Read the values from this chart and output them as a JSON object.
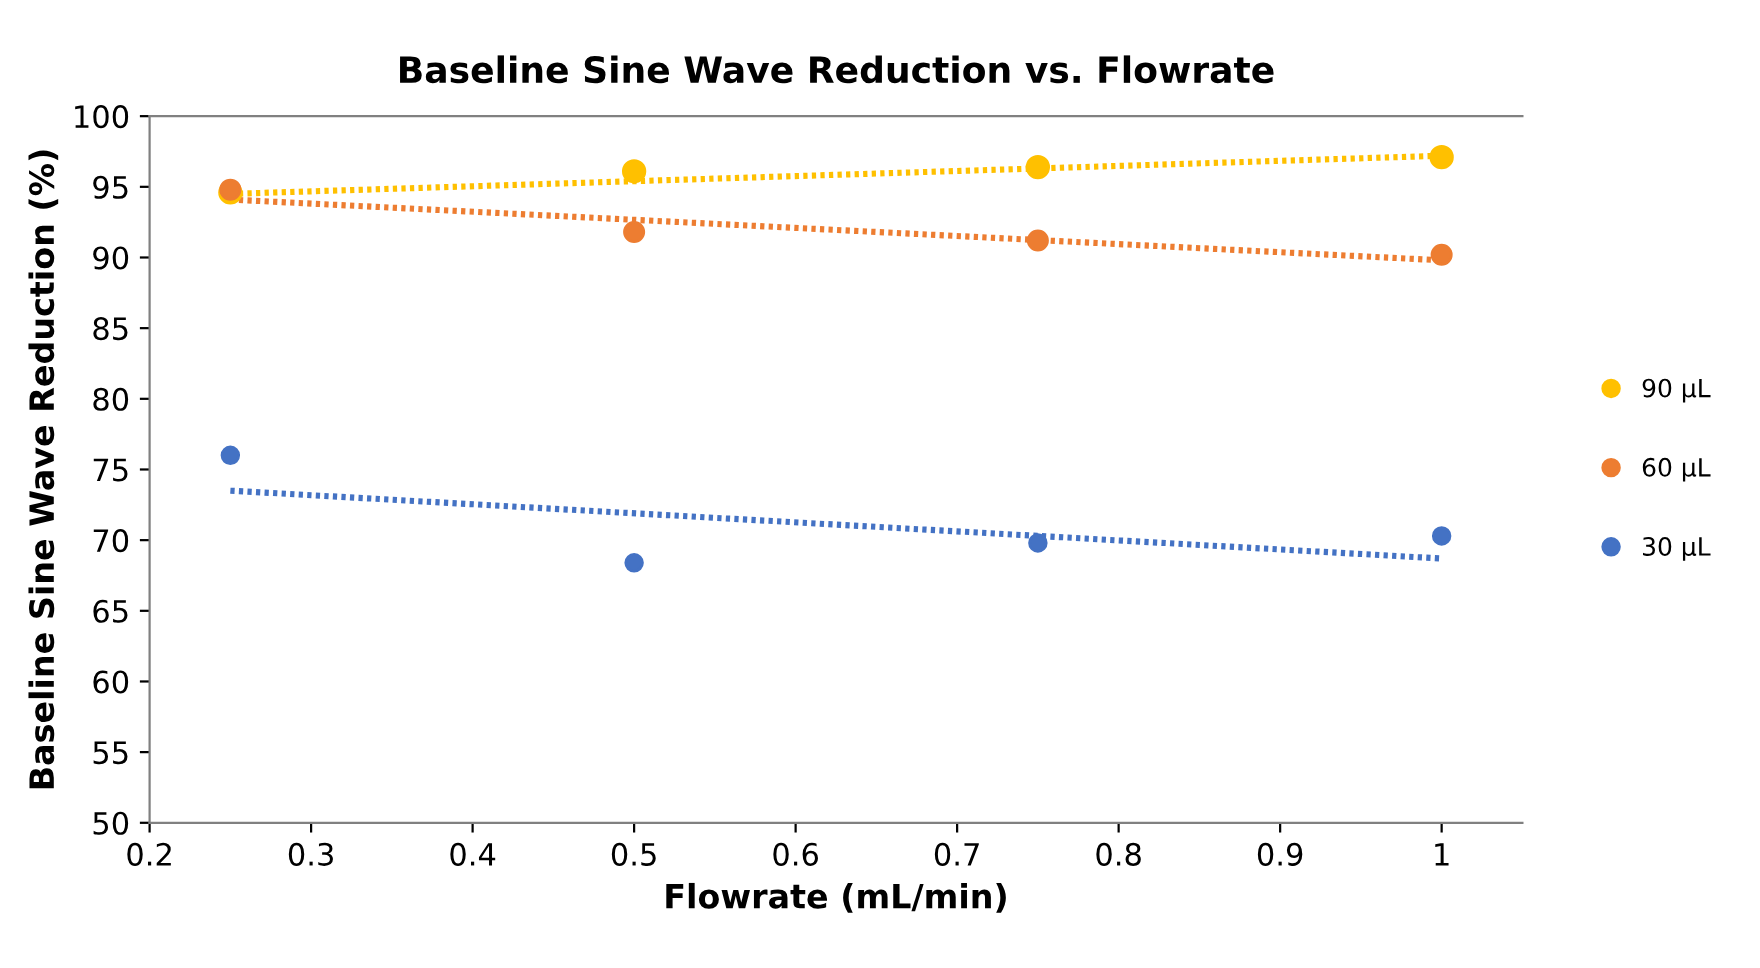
{
  "chart_data": {
    "type": "scatter",
    "title": "Baseline Sine Wave Reduction vs. Flowrate",
    "xlabel": "Flowrate (mL/min)",
    "ylabel": "Baseline Sine Wave Reduction (%)",
    "xlim": [
      0.2,
      1.05
    ],
    "ylim": [
      50,
      100
    ],
    "xticks": [
      0.2,
      0.3,
      0.4,
      0.5,
      0.6,
      0.7,
      0.8,
      0.9,
      1
    ],
    "yticks": [
      50,
      55,
      60,
      65,
      70,
      75,
      80,
      85,
      90,
      95,
      100
    ],
    "grid": false,
    "legend": "right",
    "marker": "circle",
    "series": [
      {
        "name": "90 µL",
        "color": "#ffc000",
        "x": [
          0.25,
          0.5,
          0.75,
          1
        ],
        "values": [
          94.6,
          96.1,
          96.4,
          97.1
        ]
      },
      {
        "name": "60 µL",
        "color": "#ed7d31",
        "x": [
          0.25,
          0.5,
          0.75,
          1
        ],
        "values": [
          94.8,
          91.8,
          91.2,
          90.2
        ]
      },
      {
        "name": "30 µL",
        "color": "#4472c4",
        "x": [
          0.25,
          0.5,
          0.75,
          1
        ],
        "values": [
          76.0,
          68.4,
          69.8,
          70.3
        ]
      },
      {
        "type": "line",
        "line_style": "dotted",
        "marker": "none",
        "color": "#ffc000",
        "x": [
          0.25,
          1
        ],
        "values": [
          94.5,
          97.2
        ]
      },
      {
        "type": "line",
        "line_style": "dotted",
        "marker": "none",
        "color": "#ed7d31",
        "x": [
          0.25,
          1
        ],
        "values": [
          94.1,
          89.8
        ]
      },
      {
        "type": "line",
        "line_style": "dotted",
        "marker": "none",
        "color": "#4472c4",
        "x": [
          0.25,
          1
        ],
        "values": [
          73.5,
          68.7
        ]
      }
    ]
  }
}
